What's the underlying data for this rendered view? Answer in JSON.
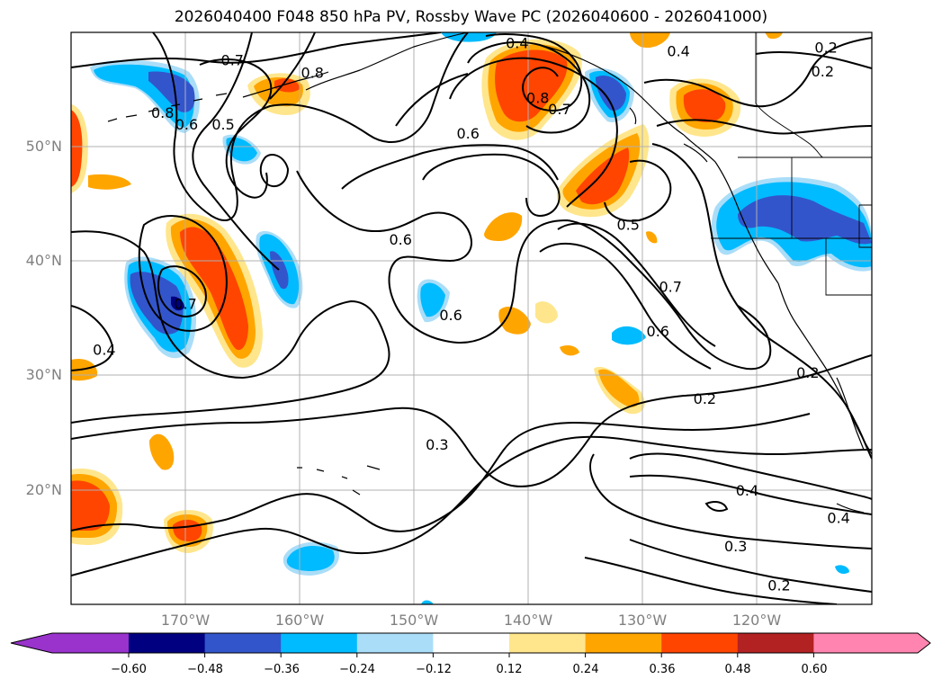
{
  "title": "2026040400 F048 850 hPa PV, Rossby Wave PC (2026040600 - 2026041000)",
  "map": {
    "lon_range": [
      -180,
      -110
    ],
    "lat_range": [
      10,
      60
    ],
    "grid": true,
    "lat_labels": [
      "20°N",
      "30°N",
      "40°N",
      "50°N"
    ],
    "lon_labels": [
      "170°W",
      "160°W",
      "150°W",
      "140°W",
      "130°W",
      "120°W"
    ],
    "contour_labels": [
      {
        "text": "0.7",
        "lon": -165.9,
        "lat": 57.6
      },
      {
        "text": "0.8",
        "lon": -158.9,
        "lat": 56.5
      },
      {
        "text": "0.8",
        "lon": -172.0,
        "lat": 53.0
      },
      {
        "text": "0.6",
        "lon": -169.9,
        "lat": 52.0
      },
      {
        "text": "0.5",
        "lon": -166.7,
        "lat": 52.0
      },
      {
        "text": "0.6",
        "lon": -145.3,
        "lat": 51.2
      },
      {
        "text": "0.4",
        "lon": -141.0,
        "lat": 59.1
      },
      {
        "text": "0.8",
        "lon": -139.2,
        "lat": 54.3
      },
      {
        "text": "0.7",
        "lon": -137.3,
        "lat": 53.3
      },
      {
        "text": "0.4",
        "lon": -126.9,
        "lat": 58.4
      },
      {
        "text": "0.2",
        "lon": -114.0,
        "lat": 58.7
      },
      {
        "text": "0.2",
        "lon": -114.3,
        "lat": 56.6
      },
      {
        "text": "0.6",
        "lon": -151.2,
        "lat": 41.9
      },
      {
        "text": "0.5",
        "lon": -131.3,
        "lat": 43.2
      },
      {
        "text": "0.7",
        "lon": -127.6,
        "lat": 37.8
      },
      {
        "text": "0.6",
        "lon": -146.8,
        "lat": 35.3
      },
      {
        "text": "0.6",
        "lon": -128.7,
        "lat": 33.9
      },
      {
        "text": "0.7",
        "lon": -170.0,
        "lat": 36.3
      },
      {
        "text": "0.4",
        "lon": -177.1,
        "lat": 32.3
      },
      {
        "text": "0.2",
        "lon": -115.6,
        "lat": 30.3
      },
      {
        "text": "0.2",
        "lon": -124.6,
        "lat": 28.0
      },
      {
        "text": "0.3",
        "lon": -148.0,
        "lat": 24.0
      },
      {
        "text": "0.4",
        "lon": -120.9,
        "lat": 20.0
      },
      {
        "text": "0.4",
        "lon": -112.9,
        "lat": 17.6
      },
      {
        "text": "0.3",
        "lon": -121.9,
        "lat": 15.1
      },
      {
        "text": "0.2",
        "lon": -118.1,
        "lat": 11.7
      }
    ]
  },
  "colorbar": {
    "tick_labels": [
      "−0.60",
      "−0.48",
      "−0.36",
      "−0.24",
      "−0.12",
      "0.12",
      "0.24",
      "0.36",
      "0.48",
      "0.60"
    ],
    "colors": [
      "#9933cc",
      "#000080",
      "#3355cc",
      "#00bbff",
      "#aaddf8",
      "#ffffff",
      "#ffe68c",
      "#ffa500",
      "#ff4500",
      "#b22222",
      "#ff85b0"
    ],
    "extend": "both"
  },
  "colors": {
    "contour": "#000000",
    "coastline": "#000000",
    "grid": "#b0b0b0",
    "axis_label": "#808080"
  }
}
